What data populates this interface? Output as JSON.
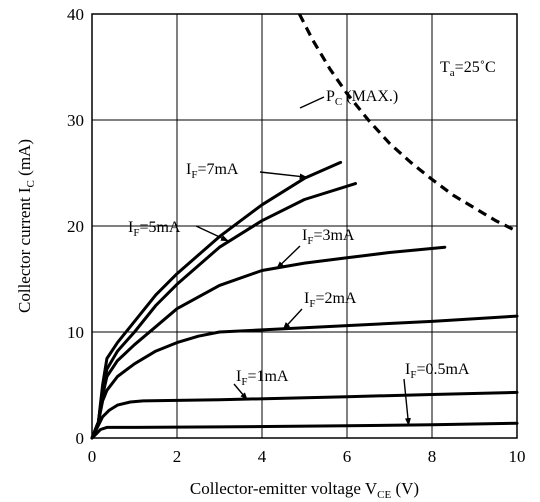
{
  "chart_data": {
    "type": "line",
    "xlabel": {
      "text": "Collector-emitter voltage V",
      "sub": "CE",
      "unit": " (V)"
    },
    "ylabel": {
      "text": "Collector current I",
      "sub": "C",
      "unit": " (mA)"
    },
    "xlim": [
      0,
      10
    ],
    "ylim": [
      0,
      40
    ],
    "x_ticks": [
      0,
      2,
      4,
      6,
      8,
      10
    ],
    "y_ticks": [
      0,
      10,
      20,
      30,
      40
    ],
    "grid": true,
    "condition": {
      "text": "T",
      "sub": "a",
      "rest": "=25˚C"
    },
    "max_curve": {
      "label": {
        "text": "P",
        "sub": "C",
        "rest": " (MAX.)"
      },
      "points": [
        [
          4.88,
          40
        ],
        [
          5.2,
          37.5
        ],
        [
          5.6,
          34.8
        ],
        [
          6.0,
          32.5
        ],
        [
          6.5,
          30.0
        ],
        [
          7.0,
          27.8
        ],
        [
          7.5,
          26.0
        ],
        [
          8.0,
          24.4
        ],
        [
          8.5,
          22.9
        ],
        [
          9.0,
          21.7
        ],
        [
          9.5,
          20.5
        ],
        [
          10.0,
          19.5
        ]
      ]
    },
    "series": [
      {
        "name": "I_F=7mA",
        "label": {
          "text": "I",
          "sub": "F",
          "rest": "=7mA"
        },
        "points": [
          [
            0,
            0
          ],
          [
            0.15,
            1.5
          ],
          [
            0.25,
            5.0
          ],
          [
            0.35,
            7.5
          ],
          [
            0.6,
            9.0
          ],
          [
            1.0,
            11.0
          ],
          [
            1.5,
            13.5
          ],
          [
            2.0,
            15.5
          ],
          [
            3.0,
            19.0
          ],
          [
            4.0,
            22.0
          ],
          [
            5.0,
            24.5
          ],
          [
            5.85,
            26.0
          ]
        ]
      },
      {
        "name": "I_F=5mA",
        "label": {
          "text": "I",
          "sub": "F",
          "rest": "=5mA"
        },
        "points": [
          [
            0,
            0
          ],
          [
            0.15,
            1.5
          ],
          [
            0.25,
            4.5
          ],
          [
            0.35,
            6.5
          ],
          [
            0.6,
            8.2
          ],
          [
            1.0,
            10.0
          ],
          [
            1.5,
            12.5
          ],
          [
            2.0,
            14.5
          ],
          [
            3.0,
            18.0
          ],
          [
            4.0,
            20.5
          ],
          [
            5.0,
            22.5
          ],
          [
            6.2,
            24.0
          ]
        ]
      },
      {
        "name": "I_F=3mA",
        "label": {
          "text": "I",
          "sub": "F",
          "rest": "=3mA"
        },
        "points": [
          [
            0,
            0
          ],
          [
            0.15,
            1.5
          ],
          [
            0.25,
            4.0
          ],
          [
            0.35,
            5.8
          ],
          [
            0.6,
            7.3
          ],
          [
            1.0,
            8.8
          ],
          [
            1.5,
            10.5
          ],
          [
            2.0,
            12.2
          ],
          [
            3.0,
            14.4
          ],
          [
            4.0,
            15.8
          ],
          [
            5.0,
            16.5
          ],
          [
            6.0,
            17.0
          ],
          [
            7.0,
            17.5
          ],
          [
            8.3,
            18.0
          ]
        ]
      },
      {
        "name": "I_F=2mA",
        "label": {
          "text": "I",
          "sub": "F",
          "rest": "=2mA"
        },
        "points": [
          [
            0,
            0
          ],
          [
            0.15,
            1.5
          ],
          [
            0.25,
            3.5
          ],
          [
            0.35,
            4.5
          ],
          [
            0.6,
            5.8
          ],
          [
            1.0,
            7.0
          ],
          [
            1.5,
            8.2
          ],
          [
            2.0,
            9.0
          ],
          [
            2.5,
            9.6
          ],
          [
            3.0,
            10.0
          ],
          [
            4.0,
            10.2
          ],
          [
            6.0,
            10.6
          ],
          [
            8.0,
            11.0
          ],
          [
            10.0,
            11.5
          ]
        ]
      },
      {
        "name": "I_F=1mA",
        "label": {
          "text": "I",
          "sub": "F",
          "rest": "=1mA"
        },
        "points": [
          [
            0,
            0
          ],
          [
            0.15,
            1.2
          ],
          [
            0.25,
            2.0
          ],
          [
            0.4,
            2.6
          ],
          [
            0.6,
            3.1
          ],
          [
            0.9,
            3.4
          ],
          [
            1.2,
            3.5
          ],
          [
            3.0,
            3.6
          ],
          [
            6.0,
            3.9
          ],
          [
            8.0,
            4.1
          ],
          [
            10.0,
            4.3
          ]
        ]
      },
      {
        "name": "I_F=0.5mA",
        "label": {
          "text": "I",
          "sub": "F",
          "rest": "=0.5mA"
        },
        "points": [
          [
            0,
            0
          ],
          [
            0.1,
            0.4
          ],
          [
            0.2,
            0.8
          ],
          [
            0.35,
            1.0
          ],
          [
            1.0,
            1.0
          ],
          [
            3.0,
            1.05
          ],
          [
            6.0,
            1.15
          ],
          [
            8.0,
            1.25
          ],
          [
            10.0,
            1.4
          ]
        ]
      }
    ]
  }
}
